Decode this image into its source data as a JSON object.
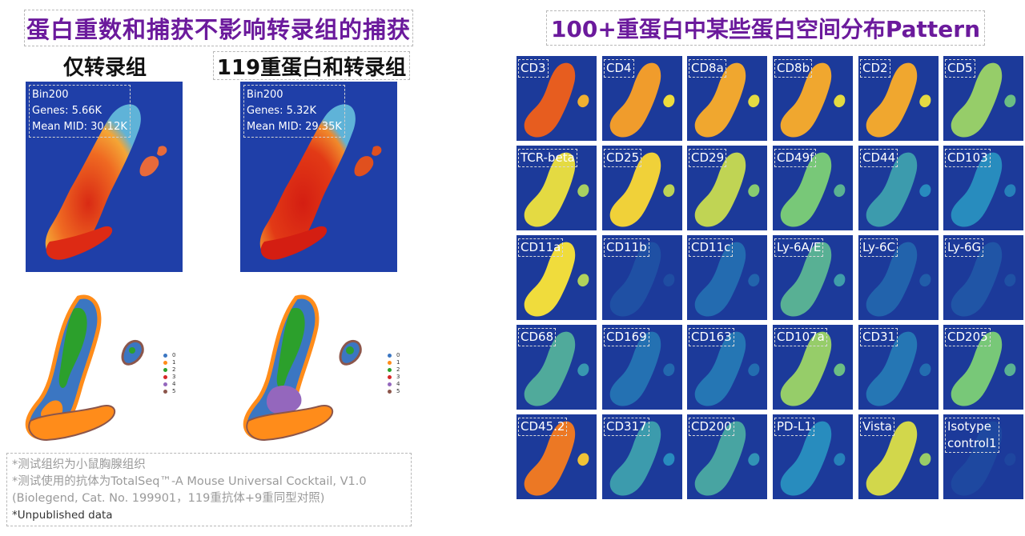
{
  "left": {
    "title": "蛋白重数和捕获不影响转录组的捕获",
    "columns": [
      {
        "title": "仅转录组",
        "stats": [
          "Bin200",
          "Genes: 5.66K",
          "Mean MID: 30.12K"
        ]
      },
      {
        "title": "119重蛋白和转录组",
        "stats": [
          "Bin200",
          "Genes: 5.32K",
          "Mean MID: 29.35K"
        ]
      }
    ],
    "legend": [
      {
        "label": "0",
        "color": "#3b76c2"
      },
      {
        "label": "1",
        "color": "#ff8c1a"
      },
      {
        "label": "2",
        "color": "#2ca02c"
      },
      {
        "label": "3",
        "color": "#d62728"
      },
      {
        "label": "4",
        "color": "#9467bd"
      },
      {
        "label": "5",
        "color": "#8c564b"
      }
    ],
    "notes": [
      "*测试组织为小鼠胸腺组织",
      "*测试使用的抗体为TotalSeq™-A Mouse Universal Cocktail, V1.0",
      "(Biolegend, Cat. No. 199901，119重抗体+9重同型对照)",
      "*Unpublished data"
    ]
  },
  "right": {
    "title": "100+重蛋白中某些蛋白空间分布Pattern",
    "proteins": [
      {
        "label": "CD3",
        "level": 0.92
      },
      {
        "label": "CD4",
        "level": 0.82
      },
      {
        "label": "CD8a",
        "level": 0.8
      },
      {
        "label": "CD8b",
        "level": 0.8
      },
      {
        "label": "CD2",
        "level": 0.8
      },
      {
        "label": "CD5",
        "level": 0.55
      },
      {
        "label": "TCR-beta",
        "level": 0.68
      },
      {
        "label": "CD25",
        "level": 0.72
      },
      {
        "label": "CD29",
        "level": 0.62
      },
      {
        "label": "CD49f",
        "level": 0.5
      },
      {
        "label": "CD44",
        "level": 0.35
      },
      {
        "label": "CD103",
        "level": 0.3
      },
      {
        "label": "CD11a",
        "level": 0.7
      },
      {
        "label": "CD11b",
        "level": 0.08
      },
      {
        "label": "CD11c",
        "level": 0.18
      },
      {
        "label": "Ly-6A/E",
        "level": 0.42
      },
      {
        "label": "Ly-6C",
        "level": 0.15
      },
      {
        "label": "Ly-6G",
        "level": 0.1
      },
      {
        "label": "CD68",
        "level": 0.4
      },
      {
        "label": "CD169",
        "level": 0.2
      },
      {
        "label": "CD163",
        "level": 0.22
      },
      {
        "label": "CD107a",
        "level": 0.55
      },
      {
        "label": "CD31",
        "level": 0.22
      },
      {
        "label": "CD205",
        "level": 0.5
      },
      {
        "label": "CD45.2",
        "level": 0.88
      },
      {
        "label": "CD317",
        "level": 0.35
      },
      {
        "label": "CD200",
        "level": 0.38
      },
      {
        "label": "PD-L1",
        "level": 0.3
      },
      {
        "label": "Vista",
        "level": 0.65
      },
      {
        "label": "Isotype\ncontrol1",
        "level": 0.05
      }
    ]
  }
}
